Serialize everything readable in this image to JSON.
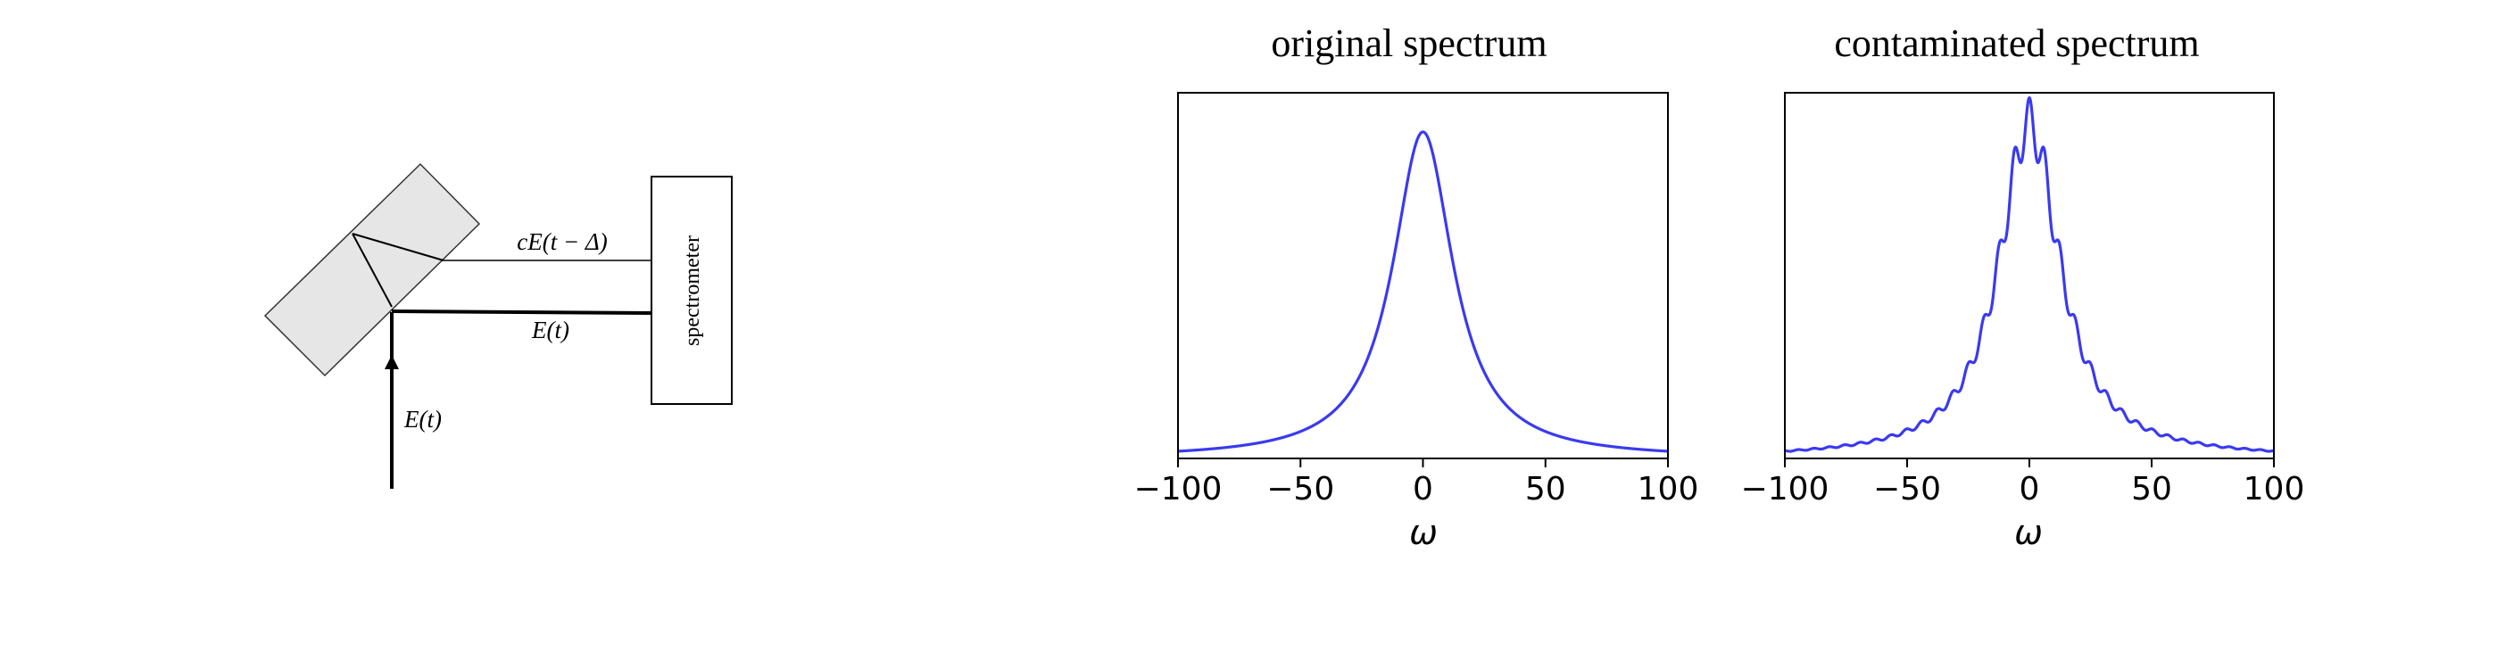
{
  "diagram": {
    "spectrometer_label": "spectrometer",
    "reflected_beam_label": "cE(t − Δ)",
    "transmitted_beam_label": "E(t)",
    "input_beam_label": "E(t)"
  },
  "colors": {
    "curve": "#3a3af0",
    "axes": "#000000",
    "box_fill": "#e6e6e6"
  },
  "chart_data": [
    {
      "type": "line",
      "title": "original spectrum",
      "xlabel": "ω",
      "ylabel": "",
      "xlim": [
        -100,
        100
      ],
      "ylim": [
        0,
        1.12
      ],
      "xticks": [
        -100,
        -50,
        0,
        50,
        100
      ],
      "xtick_labels": [
        "−100",
        "−50",
        "0",
        "50",
        "100"
      ],
      "yticks": [],
      "grid": false,
      "model": "lorentzian",
      "center": 0,
      "half_width": 15,
      "peak": 1.0
    },
    {
      "type": "line",
      "title": "contaminated spectrum",
      "xlabel": "ω",
      "ylabel": "",
      "xlim": [
        -100,
        100
      ],
      "ylim": [
        0,
        1.09
      ],
      "xticks": [
        -100,
        -50,
        0,
        50,
        100
      ],
      "xtick_labels": [
        "−100",
        "−50",
        "0",
        "50",
        "100"
      ],
      "yticks": [],
      "grid": false,
      "model": "lorentzian_with_ripple",
      "center": 0,
      "half_width": 15,
      "peak": 1.0,
      "ripple_amplitude": 0.075,
      "ripple_period": 6.3
    }
  ]
}
